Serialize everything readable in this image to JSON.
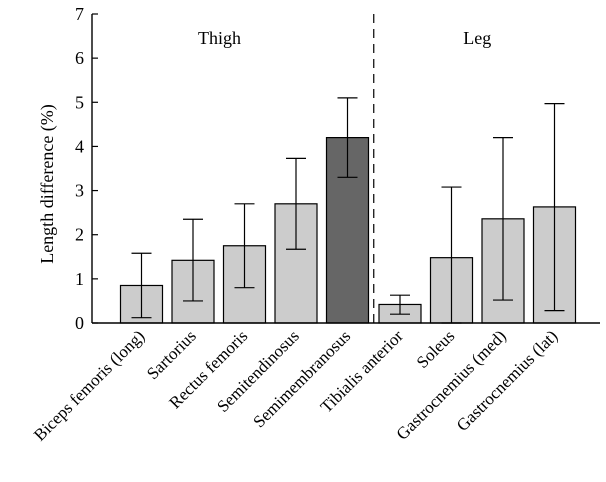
{
  "chart_data": {
    "type": "bar",
    "ylabel": "Length difference (%)",
    "ylim": [
      0,
      7
    ],
    "yticks": [
      "0",
      "1",
      "2",
      "3",
      "4",
      "5",
      "6",
      "7"
    ],
    "grid": false,
    "categories": [
      "Biceps femoris (long)",
      "Sartorius",
      "Rectus femoris",
      "Semitendinosus",
      "Semimembranosus",
      "Tibialis anterior",
      "Soleus",
      "Gastrocnemius (med)",
      "Gastrocnemius (lat)"
    ],
    "values": [
      0.85,
      1.42,
      1.75,
      2.7,
      4.2,
      0.42,
      1.48,
      2.36,
      2.63
    ],
    "error_low": [
      0.12,
      0.5,
      0.8,
      1.67,
      3.3,
      0.2,
      0.0,
      0.52,
      0.28
    ],
    "error_high": [
      1.58,
      2.35,
      2.7,
      3.73,
      5.1,
      0.63,
      3.08,
      4.2,
      4.97
    ],
    "groups": [
      {
        "label": "Thigh",
        "start": 0,
        "end": 4
      },
      {
        "label": "Leg",
        "start": 5,
        "end": 8
      }
    ],
    "highlighted_index": 4,
    "colors": {
      "bar": "#cccccc",
      "highlight": "#666666",
      "stroke": "#000000"
    }
  }
}
